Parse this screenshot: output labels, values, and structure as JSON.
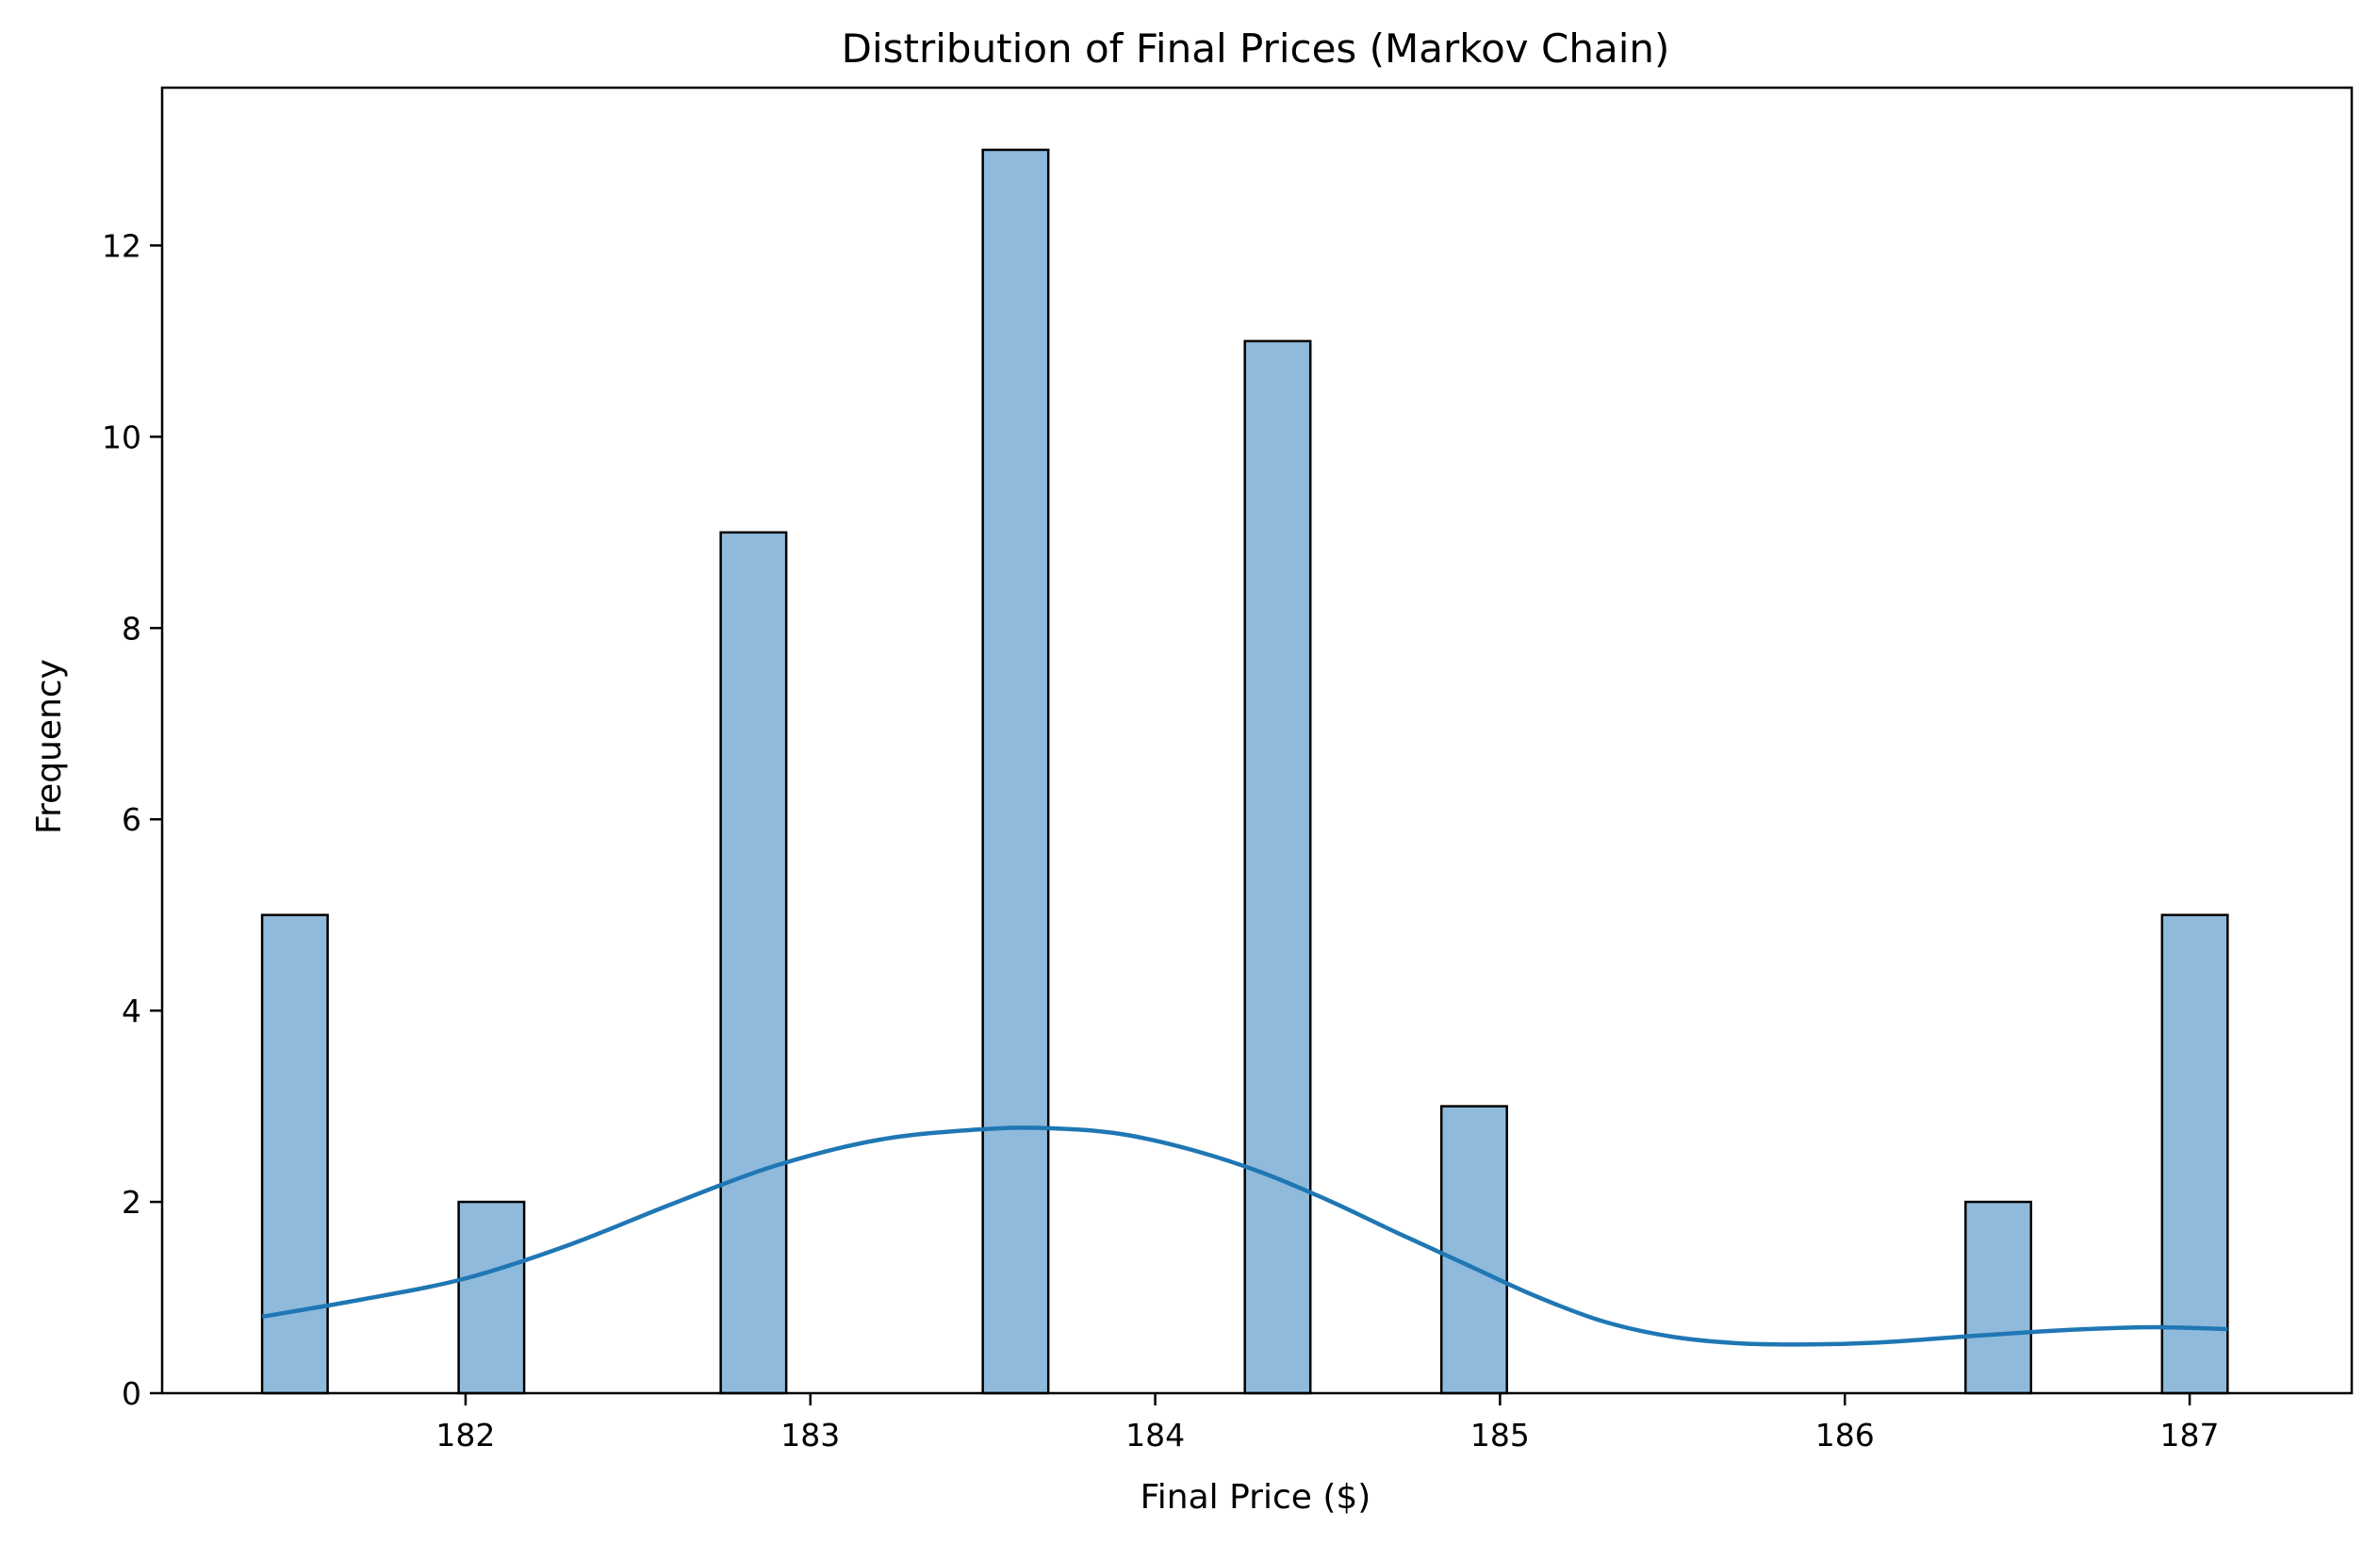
{
  "chart_data": {
    "type": "bar",
    "title": "Distribution of Final Prices (Markov Chain)",
    "xlabel": "Final Price ($)",
    "ylabel": "Frequency",
    "xlim": [
      181.12,
      187.47
    ],
    "ylim": [
      0,
      13.65
    ],
    "xticks": [
      182,
      183,
      184,
      185,
      186,
      187
    ],
    "yticks": [
      0,
      2,
      4,
      6,
      8,
      10,
      12
    ],
    "grid": false,
    "legend": "none",
    "bins": [
      {
        "x0": 181.41,
        "x1": 181.6,
        "count": 5
      },
      {
        "x0": 181.98,
        "x1": 182.17,
        "count": 2
      },
      {
        "x0": 182.74,
        "x1": 182.93,
        "count": 9
      },
      {
        "x0": 183.5,
        "x1": 183.69,
        "count": 13
      },
      {
        "x0": 184.26,
        "x1": 184.45,
        "count": 11
      },
      {
        "x0": 184.83,
        "x1": 185.02,
        "count": 3
      },
      {
        "x0": 186.35,
        "x1": 186.54,
        "count": 2
      },
      {
        "x0": 186.92,
        "x1": 187.11,
        "count": 5
      }
    ],
    "kde": {
      "x": [
        181.41,
        181.7,
        182.0,
        182.3,
        182.6,
        182.9,
        183.2,
        183.5,
        183.7,
        183.9,
        184.1,
        184.3,
        184.5,
        184.7,
        184.9,
        185.1,
        185.3,
        185.5,
        185.7,
        185.9,
        186.1,
        186.3,
        186.5,
        186.7,
        186.9,
        187.11
      ],
      "y": [
        0.8,
        0.98,
        1.2,
        1.55,
        1.98,
        2.38,
        2.65,
        2.76,
        2.77,
        2.71,
        2.55,
        2.32,
        2.02,
        1.68,
        1.35,
        1.02,
        0.75,
        0.59,
        0.52,
        0.51,
        0.53,
        0.58,
        0.63,
        0.67,
        0.69,
        0.67
      ]
    },
    "colors": {
      "bar_fill": "#8fbadb",
      "bar_edge": "#000000",
      "kde_line": "#1f77b4",
      "axes": "#000000"
    }
  }
}
